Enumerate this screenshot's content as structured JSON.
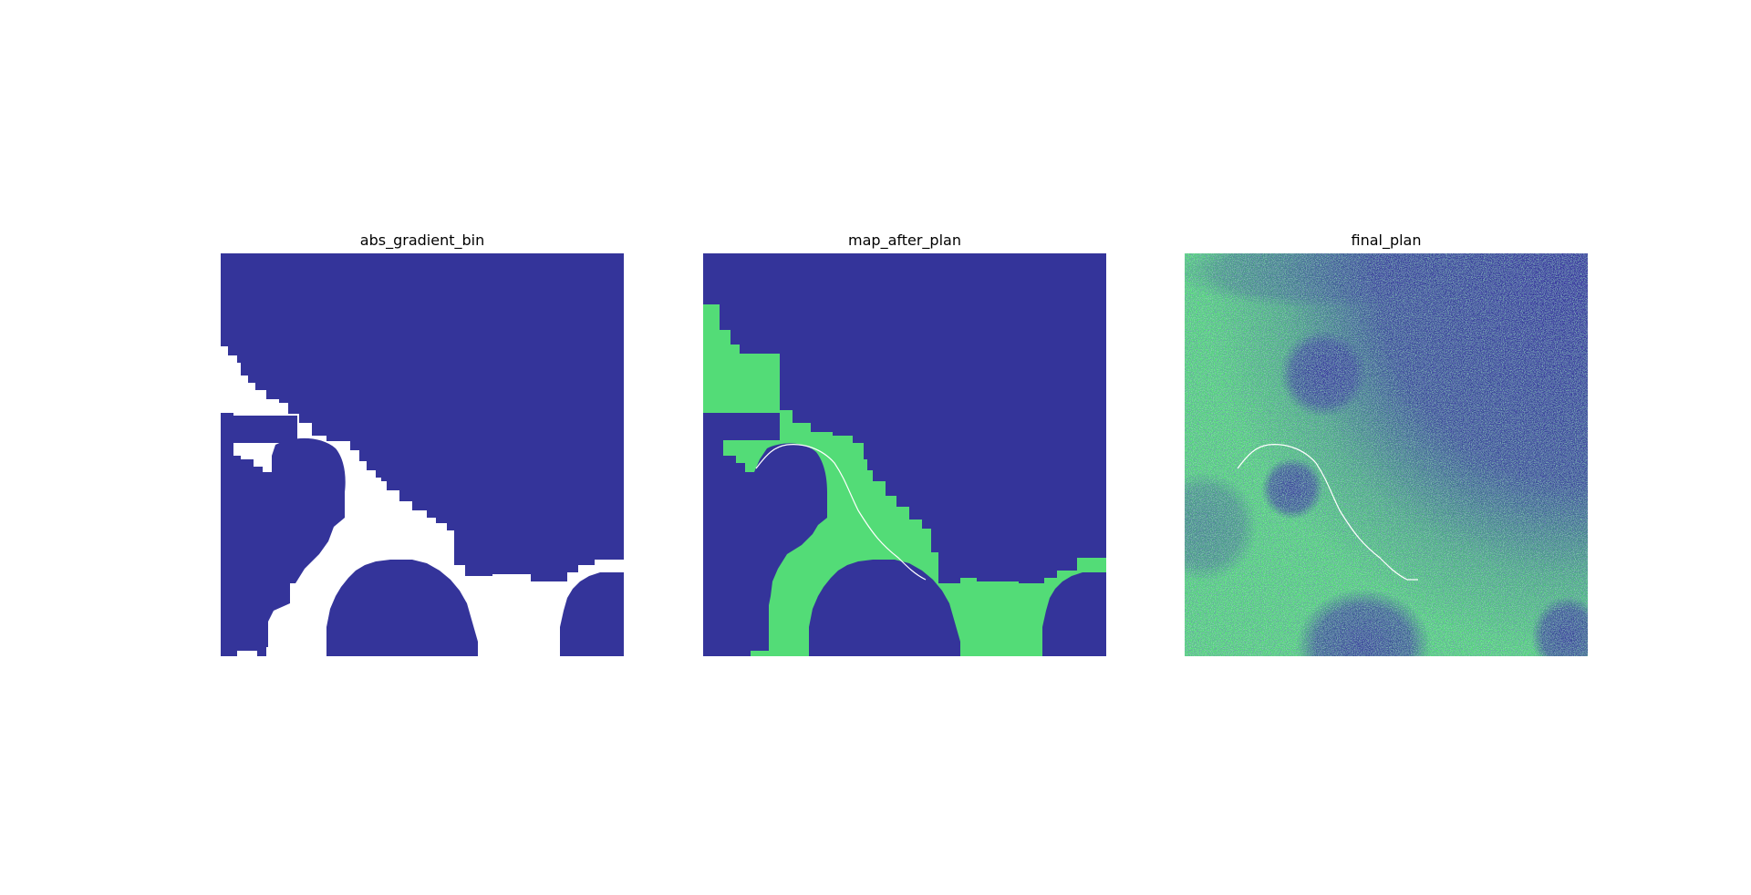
{
  "figure": {
    "panels": [
      {
        "title": "abs_gradient_bin"
      },
      {
        "title": "map_after_plan"
      },
      {
        "title": "final_plan"
      }
    ]
  },
  "colors": {
    "obstacle": "#34349a",
    "free": "#53dc77",
    "unknown": "#ffffff",
    "path": "#ffffff"
  }
}
